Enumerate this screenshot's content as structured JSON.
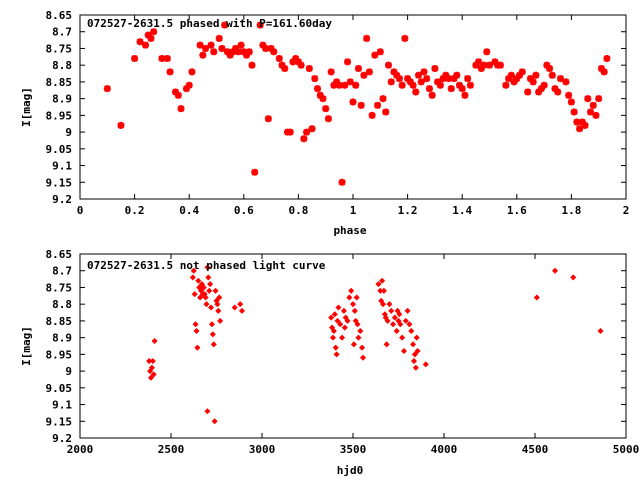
{
  "colors": {
    "points": "#ff0000",
    "axis": "#000000",
    "background": "#ffffff"
  },
  "chart_data": [
    {
      "type": "scatter",
      "title": "072527-2631.5 phased with P=161.60day",
      "xlabel": "phase",
      "ylabel": "I[mag]",
      "xlim": [
        0,
        2
      ],
      "ylim": [
        8.65,
        9.2
      ],
      "y_inverted": true,
      "grid": false,
      "marker": "star",
      "xticks": [
        "0",
        "0.2",
        "0.4",
        "0.6",
        "0.8",
        "1",
        "1.2",
        "1.4",
        "1.6",
        "1.8",
        "2"
      ],
      "yticks": [
        "8.65",
        "8.7",
        "8.75",
        "8.8",
        "8.85",
        "8.9",
        "8.95",
        "9",
        "9.05",
        "9.1",
        "9.15",
        "9.2"
      ],
      "points": [
        [
          0.1,
          8.87
        ],
        [
          0.15,
          8.98
        ],
        [
          0.2,
          8.78
        ],
        [
          0.22,
          8.73
        ],
        [
          0.24,
          8.74
        ],
        [
          0.25,
          8.71
        ],
        [
          0.26,
          8.72
        ],
        [
          0.27,
          8.7
        ],
        [
          0.3,
          8.78
        ],
        [
          0.32,
          8.78
        ],
        [
          0.33,
          8.82
        ],
        [
          0.35,
          8.88
        ],
        [
          0.36,
          8.89
        ],
        [
          0.37,
          8.93
        ],
        [
          0.39,
          8.87
        ],
        [
          0.4,
          8.86
        ],
        [
          0.41,
          8.82
        ],
        [
          0.44,
          8.74
        ],
        [
          0.45,
          8.77
        ],
        [
          0.46,
          8.75
        ],
        [
          0.48,
          8.74
        ],
        [
          0.49,
          8.76
        ],
        [
          0.51,
          8.72
        ],
        [
          0.52,
          8.75
        ],
        [
          0.53,
          8.68
        ],
        [
          0.54,
          8.76
        ],
        [
          0.55,
          8.77
        ],
        [
          0.56,
          8.76
        ],
        [
          0.57,
          8.75
        ],
        [
          0.58,
          8.76
        ],
        [
          0.59,
          8.74
        ],
        [
          0.6,
          8.76
        ],
        [
          0.61,
          8.77
        ],
        [
          0.62,
          8.76
        ],
        [
          0.63,
          8.8
        ],
        [
          0.64,
          9.12
        ],
        [
          0.66,
          8.68
        ],
        [
          0.67,
          8.74
        ],
        [
          0.68,
          8.75
        ],
        [
          0.69,
          8.96
        ],
        [
          0.7,
          8.75
        ],
        [
          0.71,
          8.76
        ],
        [
          0.73,
          8.78
        ],
        [
          0.74,
          8.8
        ],
        [
          0.75,
          8.81
        ],
        [
          0.76,
          9.0
        ],
        [
          0.77,
          9.0
        ],
        [
          0.78,
          8.79
        ],
        [
          0.79,
          8.78
        ],
        [
          0.8,
          8.79
        ],
        [
          0.81,
          8.8
        ],
        [
          0.82,
          9.02
        ],
        [
          0.83,
          9.0
        ],
        [
          0.84,
          8.81
        ],
        [
          0.85,
          8.99
        ],
        [
          0.86,
          8.84
        ],
        [
          0.87,
          8.87
        ],
        [
          0.88,
          8.89
        ],
        [
          0.89,
          8.9
        ],
        [
          0.9,
          8.93
        ],
        [
          0.91,
          8.96
        ],
        [
          0.92,
          8.82
        ],
        [
          0.93,
          8.86
        ],
        [
          0.94,
          8.85
        ],
        [
          0.95,
          8.86
        ],
        [
          0.96,
          9.15
        ],
        [
          0.97,
          8.86
        ],
        [
          0.98,
          8.79
        ],
        [
          0.99,
          8.85
        ],
        [
          1.0,
          8.91
        ],
        [
          1.01,
          8.86
        ],
        [
          1.02,
          8.81
        ],
        [
          1.03,
          8.92
        ],
        [
          1.04,
          8.83
        ],
        [
          1.05,
          8.72
        ],
        [
          1.06,
          8.82
        ],
        [
          1.07,
          8.95
        ],
        [
          1.08,
          8.77
        ],
        [
          1.09,
          8.92
        ],
        [
          1.1,
          8.76
        ],
        [
          1.11,
          8.9
        ],
        [
          1.12,
          8.94
        ],
        [
          1.13,
          8.8
        ],
        [
          1.14,
          8.85
        ],
        [
          1.15,
          8.82
        ],
        [
          1.16,
          8.83
        ],
        [
          1.17,
          8.84
        ],
        [
          1.18,
          8.86
        ],
        [
          1.19,
          8.72
        ],
        [
          1.2,
          8.84
        ],
        [
          1.21,
          8.85
        ],
        [
          1.22,
          8.86
        ],
        [
          1.23,
          8.88
        ],
        [
          1.24,
          8.83
        ],
        [
          1.25,
          8.85
        ],
        [
          1.26,
          8.82
        ],
        [
          1.27,
          8.84
        ],
        [
          1.28,
          8.87
        ],
        [
          1.29,
          8.89
        ],
        [
          1.3,
          8.81
        ],
        [
          1.31,
          8.85
        ],
        [
          1.32,
          8.86
        ],
        [
          1.33,
          8.84
        ],
        [
          1.34,
          8.83
        ],
        [
          1.35,
          8.84
        ],
        [
          1.36,
          8.87
        ],
        [
          1.37,
          8.84
        ],
        [
          1.38,
          8.83
        ],
        [
          1.39,
          8.86
        ],
        [
          1.4,
          8.87
        ],
        [
          1.41,
          8.89
        ],
        [
          1.42,
          8.84
        ],
        [
          1.43,
          8.86
        ],
        [
          1.45,
          8.8
        ],
        [
          1.46,
          8.79
        ],
        [
          1.47,
          8.81
        ],
        [
          1.48,
          8.8
        ],
        [
          1.49,
          8.76
        ],
        [
          1.5,
          8.8
        ],
        [
          1.52,
          8.79
        ],
        [
          1.53,
          8.8
        ],
        [
          1.54,
          8.8
        ],
        [
          1.56,
          8.86
        ],
        [
          1.57,
          8.84
        ],
        [
          1.58,
          8.83
        ],
        [
          1.59,
          8.85
        ],
        [
          1.6,
          8.84
        ],
        [
          1.61,
          8.83
        ],
        [
          1.62,
          8.82
        ],
        [
          1.64,
          8.88
        ],
        [
          1.65,
          8.84
        ],
        [
          1.66,
          8.85
        ],
        [
          1.67,
          8.83
        ],
        [
          1.68,
          8.88
        ],
        [
          1.69,
          8.87
        ],
        [
          1.7,
          8.86
        ],
        [
          1.71,
          8.8
        ],
        [
          1.72,
          8.81
        ],
        [
          1.73,
          8.83
        ],
        [
          1.74,
          8.87
        ],
        [
          1.75,
          8.88
        ],
        [
          1.76,
          8.84
        ],
        [
          1.78,
          8.85
        ],
        [
          1.79,
          8.89
        ],
        [
          1.8,
          8.91
        ],
        [
          1.81,
          8.94
        ],
        [
          1.82,
          8.97
        ],
        [
          1.83,
          8.99
        ],
        [
          1.84,
          8.97
        ],
        [
          1.85,
          8.98
        ],
        [
          1.86,
          8.9
        ],
        [
          1.87,
          8.94
        ],
        [
          1.88,
          8.92
        ],
        [
          1.89,
          8.95
        ],
        [
          1.9,
          8.9
        ],
        [
          1.91,
          8.81
        ],
        [
          1.92,
          8.82
        ],
        [
          1.93,
          8.78
        ]
      ]
    },
    {
      "type": "scatter",
      "title": "072527-2631.5 not phased light curve",
      "xlabel": "hjd0",
      "ylabel": "I[mag]",
      "xlim": [
        2000,
        5000
      ],
      "ylim": [
        8.65,
        9.2
      ],
      "y_inverted": true,
      "grid": false,
      "marker": "diamond",
      "xticks": [
        "2000",
        "2500",
        "3000",
        "3500",
        "4000",
        "4500",
        "5000"
      ],
      "yticks": [
        "8.65",
        "8.7",
        "8.75",
        "8.8",
        "8.85",
        "8.9",
        "8.95",
        "9",
        "9.05",
        "9.1",
        "9.15",
        "9.2"
      ],
      "points": [
        [
          2380,
          8.97
        ],
        [
          2385,
          9.0
        ],
        [
          2390,
          9.02
        ],
        [
          2395,
          8.99
        ],
        [
          2400,
          8.97
        ],
        [
          2405,
          9.01
        ],
        [
          2410,
          8.91
        ],
        [
          2620,
          8.72
        ],
        [
          2625,
          8.7
        ],
        [
          2630,
          8.77
        ],
        [
          2635,
          8.86
        ],
        [
          2640,
          8.88
        ],
        [
          2645,
          8.93
        ],
        [
          2650,
          8.73
        ],
        [
          2655,
          8.75
        ],
        [
          2660,
          8.78
        ],
        [
          2665,
          8.76
        ],
        [
          2670,
          8.74
        ],
        [
          2675,
          8.77
        ],
        [
          2680,
          8.75
        ],
        [
          2685,
          8.77
        ],
        [
          2690,
          8.78
        ],
        [
          2695,
          8.8
        ],
        [
          2700,
          8.69
        ],
        [
          2700,
          9.12
        ],
        [
          2705,
          8.72
        ],
        [
          2710,
          8.76
        ],
        [
          2715,
          8.74
        ],
        [
          2720,
          8.81
        ],
        [
          2725,
          8.86
        ],
        [
          2730,
          8.89
        ],
        [
          2735,
          8.92
        ],
        [
          2740,
          9.15
        ],
        [
          2745,
          8.76
        ],
        [
          2750,
          8.79
        ],
        [
          2755,
          8.8
        ],
        [
          2760,
          8.82
        ],
        [
          2765,
          8.78
        ],
        [
          2770,
          8.85
        ],
        [
          2850,
          8.81
        ],
        [
          2880,
          8.8
        ],
        [
          2890,
          8.82
        ],
        [
          3380,
          8.84
        ],
        [
          3385,
          8.87
        ],
        [
          3390,
          8.9
        ],
        [
          3395,
          8.88
        ],
        [
          3400,
          8.83
        ],
        [
          3405,
          8.93
        ],
        [
          3410,
          8.95
        ],
        [
          3415,
          8.85
        ],
        [
          3420,
          8.81
        ],
        [
          3430,
          8.86
        ],
        [
          3440,
          8.9
        ],
        [
          3450,
          8.82
        ],
        [
          3455,
          8.87
        ],
        [
          3460,
          8.84
        ],
        [
          3470,
          8.85
        ],
        [
          3480,
          8.78
        ],
        [
          3490,
          8.76
        ],
        [
          3500,
          8.8
        ],
        [
          3505,
          8.92
        ],
        [
          3510,
          8.82
        ],
        [
          3515,
          8.85
        ],
        [
          3520,
          8.78
        ],
        [
          3525,
          8.86
        ],
        [
          3530,
          8.9
        ],
        [
          3540,
          8.88
        ],
        [
          3550,
          8.93
        ],
        [
          3555,
          8.96
        ],
        [
          3640,
          8.74
        ],
        [
          3650,
          8.76
        ],
        [
          3655,
          8.79
        ],
        [
          3660,
          8.73
        ],
        [
          3665,
          8.8
        ],
        [
          3670,
          8.76
        ],
        [
          3675,
          8.83
        ],
        [
          3680,
          8.84
        ],
        [
          3685,
          8.92
        ],
        [
          3690,
          8.85
        ],
        [
          3700,
          8.8
        ],
        [
          3710,
          8.82
        ],
        [
          3720,
          8.86
        ],
        [
          3730,
          8.84
        ],
        [
          3740,
          8.88
        ],
        [
          3745,
          8.82
        ],
        [
          3750,
          8.85
        ],
        [
          3755,
          8.83
        ],
        [
          3760,
          8.86
        ],
        [
          3770,
          8.9
        ],
        [
          3780,
          8.94
        ],
        [
          3790,
          8.85
        ],
        [
          3800,
          8.82
        ],
        [
          3810,
          8.86
        ],
        [
          3820,
          8.88
        ],
        [
          3830,
          8.92
        ],
        [
          3835,
          8.97
        ],
        [
          3840,
          8.95
        ],
        [
          3845,
          8.99
        ],
        [
          3850,
          8.9
        ],
        [
          3855,
          8.94
        ],
        [
          3900,
          8.98
        ],
        [
          4510,
          8.78
        ],
        [
          4610,
          8.7
        ],
        [
          4710,
          8.72
        ],
        [
          4860,
          8.88
        ]
      ]
    }
  ]
}
